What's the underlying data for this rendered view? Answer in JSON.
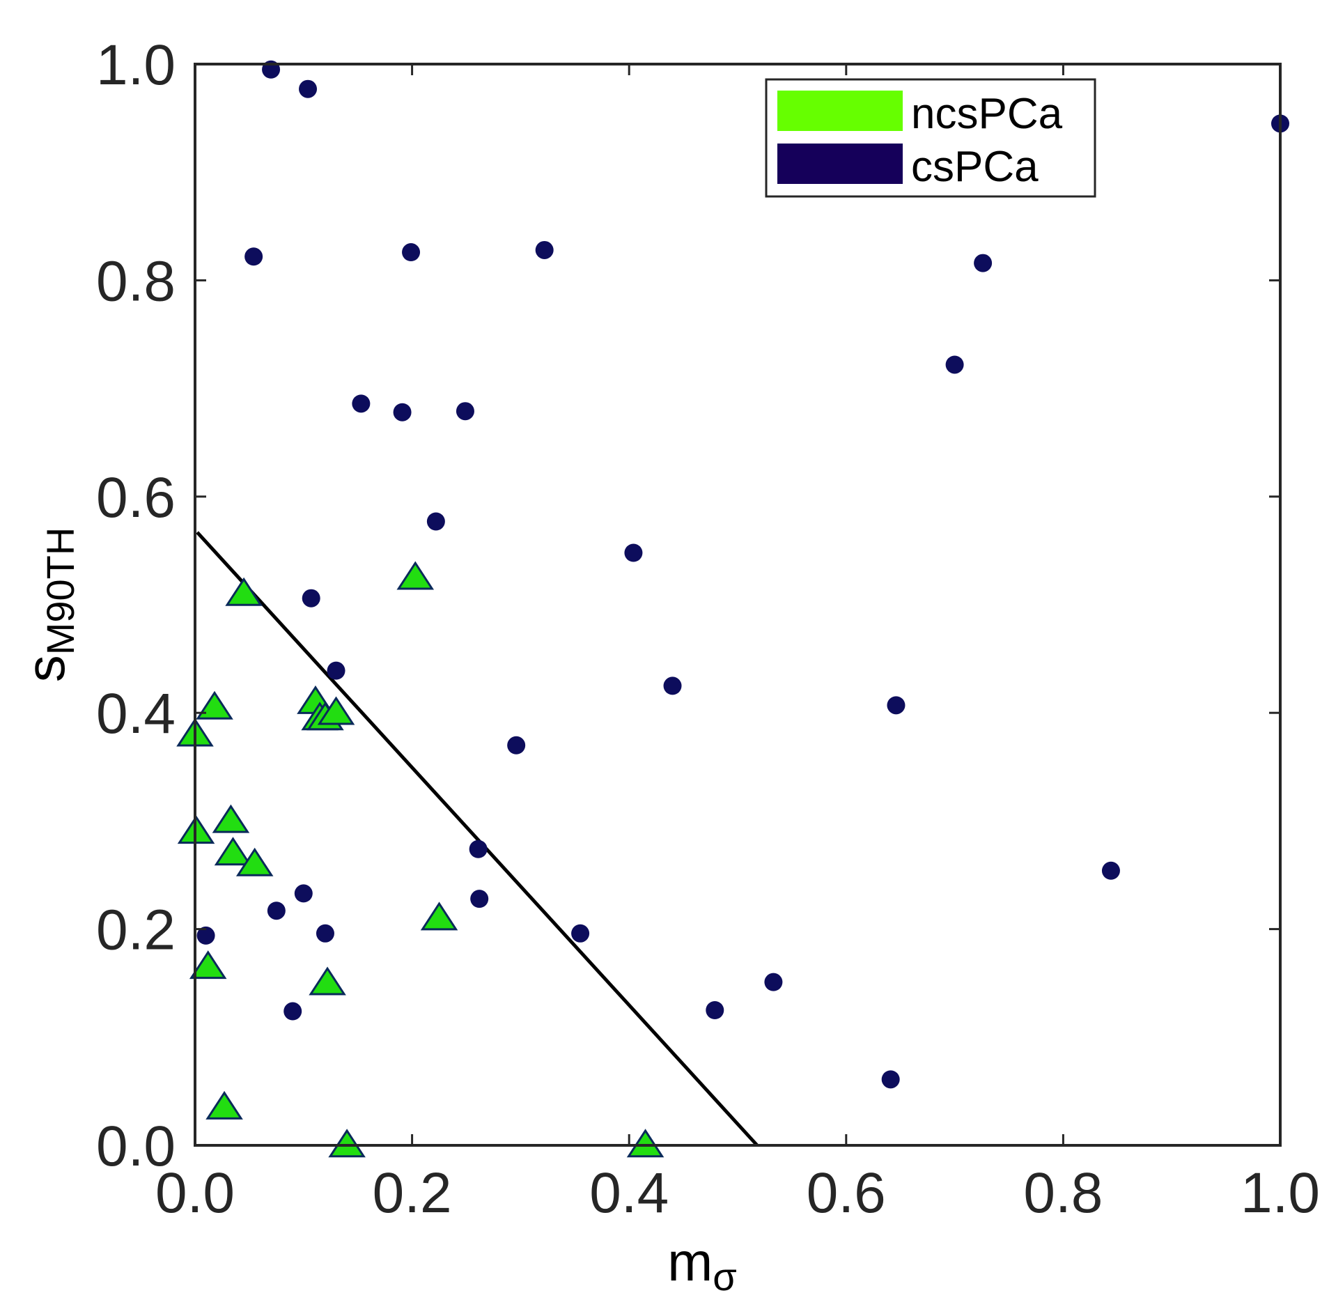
{
  "chart_data": {
    "type": "scatter",
    "xlabel": "m",
    "xlabel_sub": "σ",
    "ylabel": "s",
    "ylabel_sub": "M90TH",
    "xlim": [
      0,
      1
    ],
    "ylim": [
      0,
      1
    ],
    "xticks": [
      "0.0",
      "0.2",
      "0.4",
      "0.6",
      "0.8",
      "1.0"
    ],
    "yticks": [
      "0.0",
      "0.2",
      "0.4",
      "0.6",
      "0.8",
      "1.0"
    ],
    "grid": false,
    "legend_position": "top-right",
    "series": [
      {
        "name": "ncsPCa",
        "marker": "triangle",
        "color": "#22dd11",
        "legend_color": "#66ff00",
        "points": [
          [
            0.045,
            0.51
          ],
          [
            0.203,
            0.525
          ],
          [
            0.018,
            0.405
          ],
          [
            0.0,
            0.38
          ],
          [
            0.111,
            0.41
          ],
          [
            0.115,
            0.395
          ],
          [
            0.12,
            0.395
          ],
          [
            0.13,
            0.4
          ],
          [
            0.033,
            0.3
          ],
          [
            0.001,
            0.29
          ],
          [
            0.035,
            0.27
          ],
          [
            0.055,
            0.26
          ],
          [
            0.225,
            0.21
          ],
          [
            0.012,
            0.165
          ],
          [
            0.122,
            0.15
          ],
          [
            0.027,
            0.035
          ],
          [
            0.14,
            0.0
          ],
          [
            0.415,
            0.0
          ]
        ]
      },
      {
        "name": "csPCa",
        "marker": "circle",
        "color": "#0d0d5c",
        "legend_color": "#15005a",
        "points": [
          [
            0.07,
            0.995
          ],
          [
            0.104,
            0.977
          ],
          [
            1.0,
            0.945
          ],
          [
            0.054,
            0.822
          ],
          [
            0.199,
            0.826
          ],
          [
            0.322,
            0.828
          ],
          [
            0.726,
            0.816
          ],
          [
            0.7,
            0.722
          ],
          [
            0.153,
            0.686
          ],
          [
            0.191,
            0.678
          ],
          [
            0.249,
            0.679
          ],
          [
            0.222,
            0.577
          ],
          [
            0.404,
            0.548
          ],
          [
            0.107,
            0.506
          ],
          [
            0.13,
            0.439
          ],
          [
            0.44,
            0.425
          ],
          [
            0.646,
            0.407
          ],
          [
            0.296,
            0.37
          ],
          [
            0.261,
            0.274
          ],
          [
            0.262,
            0.228
          ],
          [
            0.1,
            0.233
          ],
          [
            0.075,
            0.217
          ],
          [
            0.01,
            0.194
          ],
          [
            0.12,
            0.196
          ],
          [
            0.355,
            0.196
          ],
          [
            0.844,
            0.254
          ],
          [
            0.533,
            0.151
          ],
          [
            0.479,
            0.125
          ],
          [
            0.09,
            0.124
          ],
          [
            0.641,
            0.061
          ]
        ]
      }
    ],
    "decision_line": {
      "x": [
        0.002,
        0.518
      ],
      "y": [
        0.567,
        0.0
      ],
      "color": "#000000"
    }
  }
}
